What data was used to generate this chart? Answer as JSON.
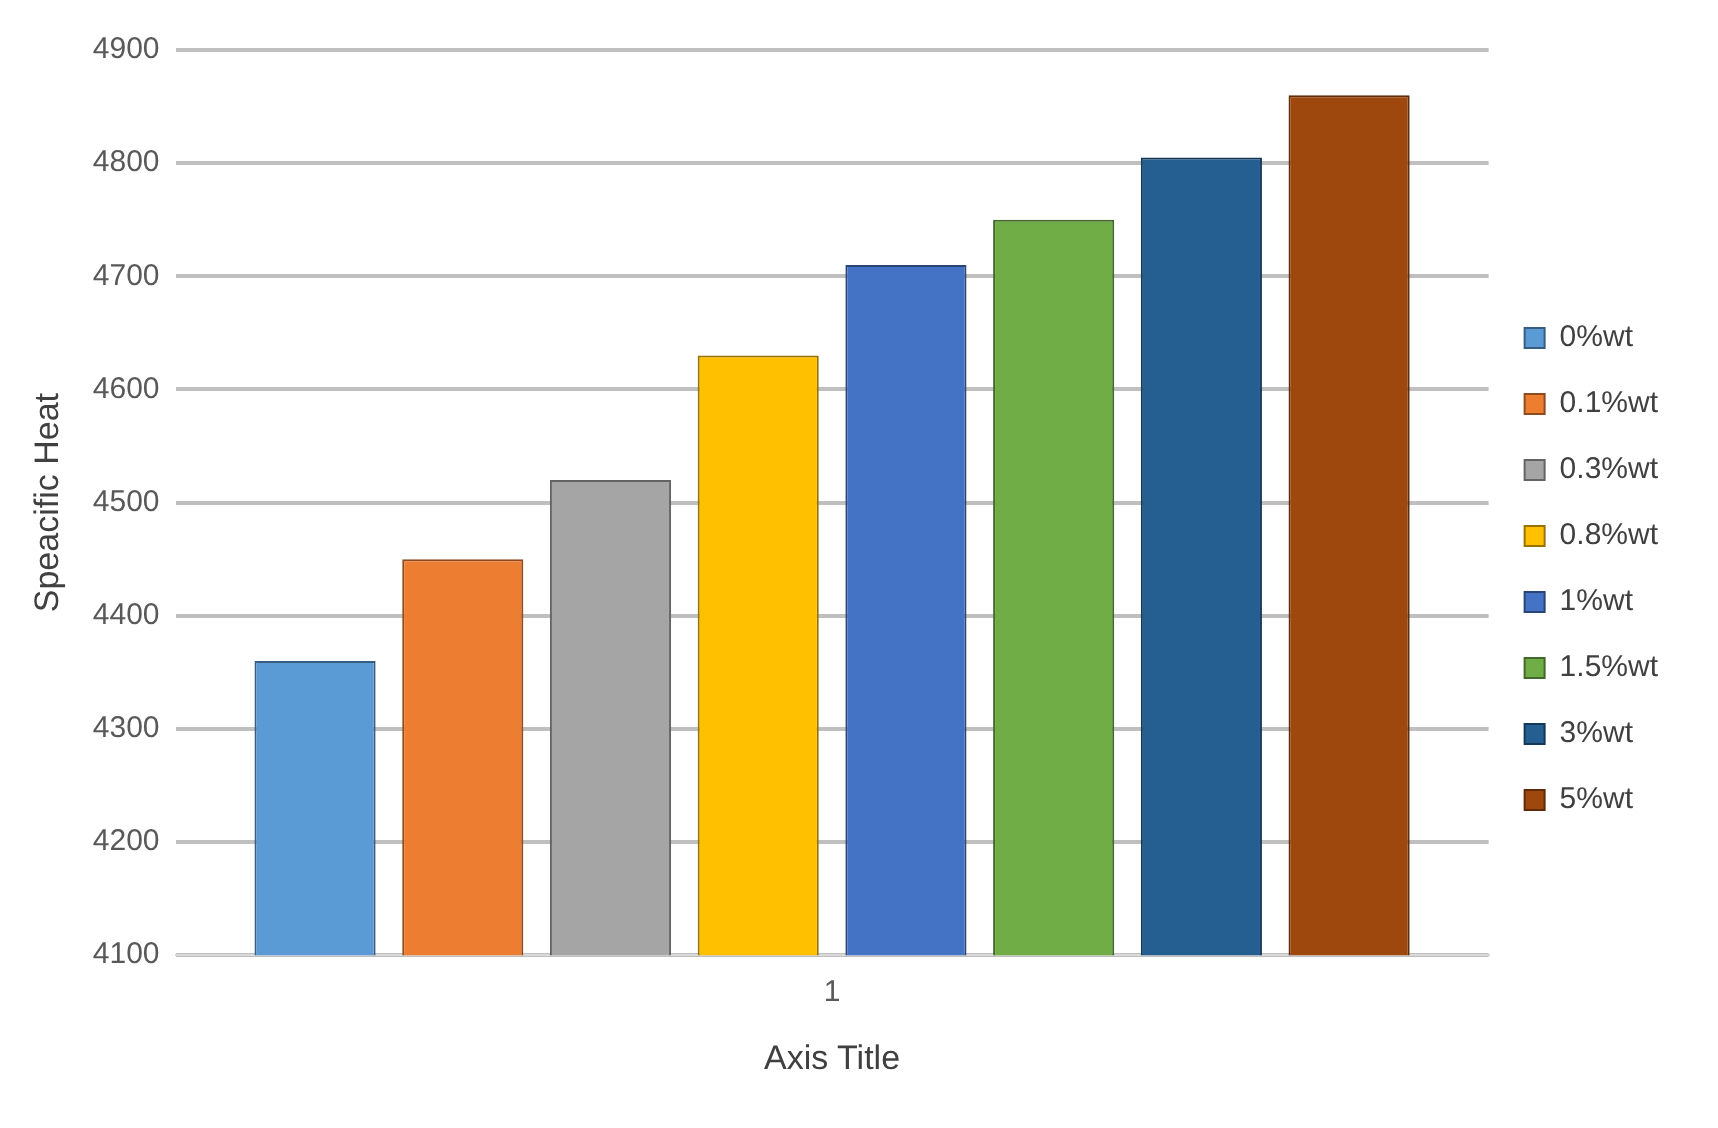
{
  "chart_data": {
    "type": "bar",
    "xlabel": "Axis Title",
    "ylabel": "Speacific Heat",
    "categories": [
      "1"
    ],
    "series": [
      {
        "name": "0%wt",
        "color": "#5b9bd5",
        "values": [
          4360
        ]
      },
      {
        "name": "0.1%wt",
        "color": "#ed7d31",
        "values": [
          4450
        ]
      },
      {
        "name": "0.3%wt",
        "color": "#a5a5a5",
        "values": [
          4520
        ]
      },
      {
        "name": "0.8%wt",
        "color": "#ffc000",
        "values": [
          4630
        ]
      },
      {
        "name": "1%wt",
        "color": "#4472c4",
        "values": [
          4710
        ]
      },
      {
        "name": "1.5%wt",
        "color": "#70ad47",
        "values": [
          4750
        ]
      },
      {
        "name": "3%wt",
        "color": "#255e91",
        "values": [
          4805
        ]
      },
      {
        "name": "5%wt",
        "color": "#9e480e",
        "values": [
          4860
        ]
      }
    ],
    "ylim": [
      4100,
      4900
    ],
    "yticks": [
      4100,
      4200,
      4300,
      4400,
      4500,
      4600,
      4700,
      4800,
      4900
    ],
    "grid": "y",
    "legend": "right"
  }
}
